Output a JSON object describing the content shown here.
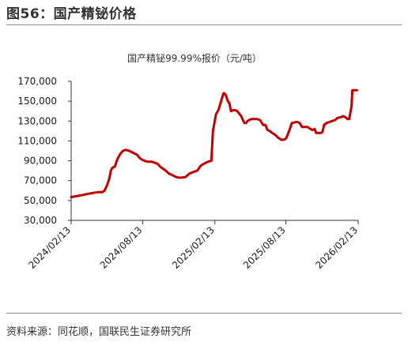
{
  "figure": {
    "label": "图56：国产精铋价格",
    "source": "资料来源：同花顺，国联民生证券研究所"
  },
  "chart_data": {
    "type": "line",
    "title": "国产精铋99.99%报价（元/吨）",
    "xlabel": "",
    "ylabel": "",
    "ylim": [
      30000,
      170000
    ],
    "xlim": [
      "2024-02-13",
      "2026-02-13"
    ],
    "yticks": [
      30000,
      50000,
      70000,
      90000,
      110000,
      130000,
      150000,
      170000
    ],
    "ytick_labels": [
      "30,000",
      "50,000",
      "70,000",
      "90,000",
      "110,000",
      "130,000",
      "150,000",
      "170,000"
    ],
    "xticks": [
      "2024-02-13",
      "2024-08-13",
      "2025-02-13",
      "2025-08-13",
      "2026-02-13"
    ],
    "xtick_labels": [
      "2024/02/13",
      "2024/08/13",
      "2025/02/13",
      "2025/08/13",
      "2026/02/13"
    ],
    "grid": false,
    "legend": "none",
    "series": [
      {
        "color": "#c00000",
        "x": [
          "2024-02-13",
          "2024-03-06",
          "2024-03-30",
          "2024-04-15",
          "2024-04-23",
          "2024-05-03",
          "2024-05-08",
          "2024-05-14",
          "2024-05-20",
          "2024-05-24",
          "2024-05-28",
          "2024-06-03",
          "2024-06-10",
          "2024-06-17",
          "2024-06-24",
          "2024-07-01",
          "2024-07-10",
          "2024-07-20",
          "2024-07-30",
          "2024-08-05",
          "2024-08-12",
          "2024-08-18",
          "2024-08-26",
          "2024-09-06",
          "2024-09-20",
          "2024-09-27",
          "2024-10-11",
          "2024-10-19",
          "2024-10-26",
          "2024-11-04",
          "2024-11-12",
          "2024-11-20",
          "2024-11-30",
          "2024-12-10",
          "2024-12-22",
          "2024-12-30",
          "2025-01-08",
          "2025-01-16",
          "2025-01-26",
          "2025-02-04",
          "2025-02-08",
          "2025-02-16",
          "2025-02-22",
          "2025-03-03",
          "2025-03-07",
          "2025-03-09",
          "2025-03-13",
          "2025-03-18",
          "2025-03-22",
          "2025-03-26",
          "2025-04-01",
          "2025-04-05",
          "2025-04-11",
          "2025-04-21",
          "2025-04-29",
          "2025-05-03",
          "2025-05-07",
          "2025-05-11",
          "2025-05-17",
          "2025-05-25",
          "2025-06-01",
          "2025-06-08",
          "2025-06-16",
          "2025-06-22",
          "2025-06-27",
          "2025-07-03",
          "2025-07-09",
          "2025-07-17",
          "2025-07-25",
          "2025-08-02",
          "2025-08-10",
          "2025-08-14",
          "2025-08-22",
          "2025-08-28",
          "2025-09-03",
          "2025-09-07",
          "2025-09-11",
          "2025-09-17",
          "2025-09-23",
          "2025-10-07",
          "2025-10-11",
          "2025-10-19",
          "2025-10-25",
          "2025-10-29",
          "2025-11-04",
          "2025-11-10",
          "2025-11-14",
          "2025-11-18",
          "2025-11-24",
          "2025-12-02",
          "2025-12-08",
          "2025-12-16",
          "2025-12-22",
          "2025-12-26",
          "2026-01-01",
          "2026-01-05",
          "2026-01-11",
          "2026-01-17",
          "2026-01-21",
          "2026-01-27",
          "2026-01-29",
          "2026-02-04",
          "2026-02-10"
        ],
        "y": [
          53500,
          55000,
          57000,
          58000,
          58500,
          58500,
          60000,
          65000,
          72000,
          80000,
          83000,
          84000,
          92000,
          97000,
          100000,
          101000,
          100000,
          98000,
          96000,
          93000,
          91000,
          90000,
          89000,
          89000,
          87000,
          84000,
          80000,
          77000,
          76000,
          74000,
          73000,
          73000,
          73500,
          77000,
          79000,
          80000,
          85000,
          87000,
          89000,
          90000,
          120000,
          137000,
          141000,
          153000,
          158000,
          158000,
          156000,
          150000,
          148000,
          140000,
          141000,
          141000,
          140000,
          135000,
          128000,
          128000,
          130000,
          131000,
          132000,
          132000,
          132000,
          131000,
          126000,
          126000,
          121000,
          120000,
          118000,
          116000,
          113000,
          111000,
          111500,
          113000,
          121000,
          128000,
          128500,
          129000,
          129000,
          128000,
          124000,
          124000,
          123000,
          121000,
          122000,
          118000,
          118000,
          118000,
          119000,
          126000,
          128000,
          129000,
          130000,
          131000,
          133000,
          133500,
          134000,
          135000,
          134000,
          132000,
          132000,
          145000,
          161000,
          161000,
          161000
        ]
      }
    ]
  }
}
